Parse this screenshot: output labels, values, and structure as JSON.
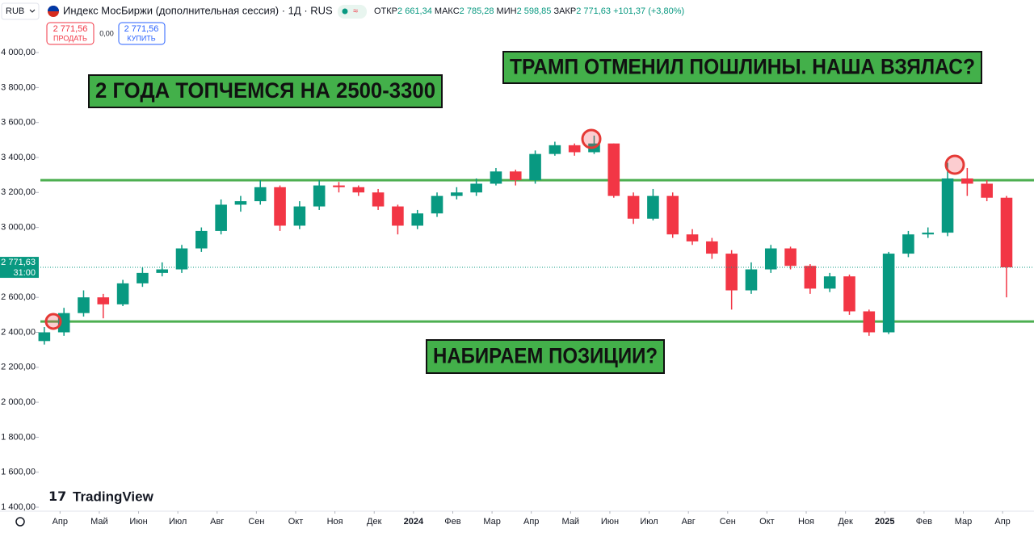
{
  "header": {
    "currency": "RUB",
    "title": "Индекс МосБиржи (дополнительная сессия) · 1Д · RUS",
    "ohlc_labels": [
      "ОТКР",
      "МАКС",
      "МИН",
      "ЗАКР"
    ],
    "ohlc_values": [
      "2 661,34",
      "2 785,28",
      "2 598,85",
      "2 771,63"
    ],
    "change": "+101,37 (+3,80%)",
    "sell_price": "2 771,56",
    "sell": "ПРОДАТЬ",
    "spread": "0,00",
    "buy_price": "2 771,56",
    "buy": "КУПИТЬ",
    "watermark": "TradingView"
  },
  "chart_data": {
    "type": "candlestick",
    "up_color": "#089981",
    "down_color": "#f23645",
    "x": [
      2.6,
      3.1,
      3.6,
      4.1,
      4.6,
      5.1,
      5.6,
      6.1,
      6.6,
      7.1,
      7.6,
      8.1,
      8.6,
      9.1,
      9.6,
      10.1,
      10.6,
      11.1,
      11.6,
      12.1,
      12.6,
      13.1,
      13.6,
      14.1,
      14.6,
      15.1,
      15.6,
      16.1,
      16.6,
      17.1,
      17.6,
      18.1,
      18.6,
      19.1,
      19.6,
      20.1,
      20.6,
      21.1,
      21.6,
      22.1,
      22.6,
      23.1,
      23.6,
      24.1,
      24.6,
      25.1,
      25.6,
      26.1,
      26.6,
      27.1
    ],
    "open": [
      2350,
      2400,
      2510,
      2600,
      2560,
      2680,
      2740,
      2760,
      2880,
      2980,
      3130,
      3150,
      3230,
      3010,
      3120,
      3240,
      3230,
      3200,
      3120,
      3010,
      3080,
      3180,
      3200,
      3250,
      3320,
      3270,
      3420,
      3470,
      3430,
      3480,
      3180,
      3050,
      3180,
      2960,
      2920,
      2850,
      2640,
      2760,
      2880,
      2780,
      2650,
      2720,
      2520,
      2400,
      2850,
      2960,
      2970,
      3280,
      3250,
      3170
    ],
    "high": [
      2430,
      2540,
      2640,
      2620,
      2700,
      2770,
      2800,
      2900,
      3000,
      3160,
      3180,
      3270,
      3240,
      3150,
      3270,
      3260,
      3240,
      3220,
      3130,
      3100,
      3200,
      3230,
      3280,
      3340,
      3330,
      3440,
      3490,
      3480,
      3525,
      3480,
      3200,
      3220,
      3200,
      2990,
      2940,
      2870,
      2800,
      2900,
      2890,
      2790,
      2740,
      2730,
      2530,
      2860,
      2980,
      3000,
      3370,
      3340,
      3270,
      3180
    ],
    "low": [
      2330,
      2380,
      2490,
      2480,
      2550,
      2660,
      2720,
      2740,
      2860,
      2960,
      3090,
      3130,
      2980,
      2990,
      3100,
      3200,
      3180,
      3100,
      2960,
      2990,
      3060,
      3160,
      3180,
      3240,
      3240,
      3250,
      3410,
      3410,
      3420,
      3170,
      3020,
      3040,
      2940,
      2900,
      2820,
      2530,
      2620,
      2740,
      2760,
      2620,
      2630,
      2500,
      2380,
      2390,
      2830,
      2940,
      2950,
      3180,
      3150,
      2600
    ],
    "close": [
      2400,
      2510,
      2600,
      2560,
      2680,
      2740,
      2760,
      2880,
      2980,
      3130,
      3150,
      3230,
      3010,
      3120,
      3240,
      3230,
      3200,
      3120,
      3010,
      3080,
      3180,
      3200,
      3250,
      3320,
      3270,
      3420,
      3470,
      3430,
      3480,
      3180,
      3050,
      3180,
      2960,
      2920,
      2850,
      2640,
      2760,
      2880,
      2780,
      2650,
      2720,
      2520,
      2400,
      2850,
      2960,
      2970,
      3280,
      3250,
      3170,
      2771.63
    ],
    "xlim": [
      2.5,
      27.8
    ],
    "ylim": [
      1377,
      4162
    ],
    "xticks": [
      {
        "value": 3,
        "label": "Апр"
      },
      {
        "value": 4,
        "label": "Май"
      },
      {
        "value": 5,
        "label": "Июн"
      },
      {
        "value": 6,
        "label": "Июл"
      },
      {
        "value": 7,
        "label": "Авг"
      },
      {
        "value": 8,
        "label": "Сен"
      },
      {
        "value": 9,
        "label": "Окт"
      },
      {
        "value": 10,
        "label": "Ноя"
      },
      {
        "value": 11,
        "label": "Дек"
      },
      {
        "value": 12,
        "label": "2024"
      },
      {
        "value": 13,
        "label": "Фев"
      },
      {
        "value": 14,
        "label": "Мар"
      },
      {
        "value": 15,
        "label": "Апр"
      },
      {
        "value": 16,
        "label": "Май"
      },
      {
        "value": 17,
        "label": "Июн"
      },
      {
        "value": 18,
        "label": "Июл"
      },
      {
        "value": 19,
        "label": "Авг"
      },
      {
        "value": 20,
        "label": "Сен"
      },
      {
        "value": 21,
        "label": "Окт"
      },
      {
        "value": 22,
        "label": "Ноя"
      },
      {
        "value": 23,
        "label": "Дек"
      },
      {
        "value": 24,
        "label": "2025"
      },
      {
        "value": 25,
        "label": "Фев"
      },
      {
        "value": 26,
        "label": "Мар"
      },
      {
        "value": 27,
        "label": "Апр"
      }
    ],
    "yticks": [
      {
        "value": 1400,
        "label": "1 400,00"
      },
      {
        "value": 1600,
        "label": "1 600,00"
      },
      {
        "value": 1800,
        "label": "1 800,00"
      },
      {
        "value": 2000,
        "label": "2 000,00"
      },
      {
        "value": 2200,
        "label": "2 200,00"
      },
      {
        "value": 2400,
        "label": "2 400,00"
      },
      {
        "value": 2600,
        "label": "2 600,00"
      },
      {
        "value": 2800,
        "label": "2 800,00"
      },
      {
        "value": 3000,
        "label": "3 000,00"
      },
      {
        "value": 3200,
        "label": "3 200,00"
      },
      {
        "value": 3400,
        "label": "3 400,00"
      },
      {
        "value": 3600,
        "label": "3 600,00"
      },
      {
        "value": 3800,
        "label": "3 800,00"
      },
      {
        "value": 4000,
        "label": "4 000,00"
      }
    ],
    "levels": [
      3270,
      2462
    ],
    "level_color": "#4caf50",
    "last_price": {
      "value": 2771.63,
      "label": "2 771,63",
      "countdown": "31:00"
    },
    "annotations": [
      "2 ГОДА ТОПЧЕМСЯ НА 2500-3300",
      "ТРАМП ОТМЕНИЛ ПОШЛИНЫ. НАША ВЗЯЛАС?",
      "НАБИРАЕМ ПОЗИЦИИ?"
    ]
  }
}
